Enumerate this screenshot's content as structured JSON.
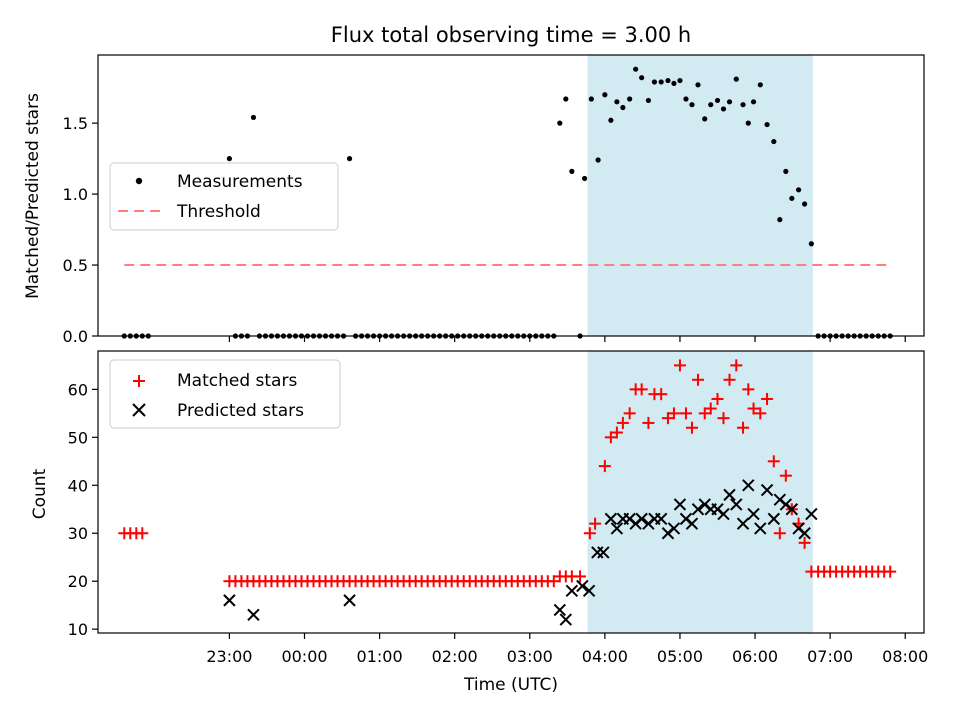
{
  "chart_data": {
    "title": "Flux total observing time = 3.00 h",
    "xlabel": "Time (UTC)",
    "time_unit": "hours relative to 00:00 UTC",
    "xlim": [
      -2.75,
      8.25
    ],
    "x_ticks": [
      {
        "value": -1,
        "label": "23:00"
      },
      {
        "value": 0,
        "label": "00:00"
      },
      {
        "value": 1,
        "label": "01:00"
      },
      {
        "value": 2,
        "label": "02:00"
      },
      {
        "value": 3,
        "label": "03:00"
      },
      {
        "value": 4,
        "label": "04:00"
      },
      {
        "value": 5,
        "label": "05:00"
      },
      {
        "value": 6,
        "label": "06:00"
      },
      {
        "value": 7,
        "label": "07:00"
      },
      {
        "value": 8,
        "label": "08:00"
      }
    ],
    "shaded_region": {
      "start": 3.77,
      "end": 6.77,
      "color": "#add8e6"
    },
    "colors": {
      "measurements": "#000000",
      "threshold": "#ff7f7f",
      "matched": "#ff0000",
      "predicted": "#000000",
      "shade": "#add8e6"
    },
    "top_panel": {
      "type": "scatter",
      "ylabel": "Matched/Predicted stars",
      "ylim": [
        0,
        1.98
      ],
      "y_ticks": [
        {
          "value": 0,
          "label": "0.0"
        },
        {
          "value": 0.5,
          "label": "0.5"
        },
        {
          "value": 1,
          "label": "1.0"
        },
        {
          "value": 1.5,
          "label": "1.5"
        }
      ],
      "threshold": {
        "value": 0.5,
        "x_start": -2.4,
        "x_end": 7.8
      },
      "legend": {
        "placement": "center-left",
        "measurements_label": "Measurements",
        "threshold_label": "Threshold"
      },
      "measurements": [
        [
          -2.4,
          0
        ],
        [
          -2.32,
          0
        ],
        [
          -2.24,
          0
        ],
        [
          -2.16,
          0
        ],
        [
          -2.08,
          0
        ],
        [
          -1.0,
          1.25
        ],
        [
          -0.92,
          0
        ],
        [
          -0.84,
          0
        ],
        [
          -0.76,
          0
        ],
        [
          -0.68,
          1.54
        ],
        [
          -0.6,
          0
        ],
        [
          -0.52,
          0
        ],
        [
          -0.44,
          0
        ],
        [
          -0.36,
          0
        ],
        [
          -0.28,
          0
        ],
        [
          -0.2,
          0
        ],
        [
          -0.12,
          0
        ],
        [
          -0.04,
          0
        ],
        [
          0.04,
          0
        ],
        [
          0.12,
          0
        ],
        [
          0.2,
          0
        ],
        [
          0.28,
          0
        ],
        [
          0.36,
          0
        ],
        [
          0.44,
          0
        ],
        [
          0.52,
          0
        ],
        [
          0.6,
          1.25
        ],
        [
          0.68,
          0
        ],
        [
          0.76,
          0
        ],
        [
          0.84,
          0
        ],
        [
          0.92,
          0
        ],
        [
          1.0,
          0
        ],
        [
          1.08,
          0
        ],
        [
          1.16,
          0
        ],
        [
          1.24,
          0
        ],
        [
          1.32,
          0
        ],
        [
          1.4,
          0
        ],
        [
          1.48,
          0
        ],
        [
          1.56,
          0
        ],
        [
          1.64,
          0
        ],
        [
          1.72,
          0
        ],
        [
          1.8,
          0
        ],
        [
          1.88,
          0
        ],
        [
          1.96,
          0
        ],
        [
          2.04,
          0
        ],
        [
          2.12,
          0
        ],
        [
          2.2,
          0
        ],
        [
          2.28,
          0
        ],
        [
          2.36,
          0
        ],
        [
          2.44,
          0
        ],
        [
          2.52,
          0
        ],
        [
          2.6,
          0
        ],
        [
          2.68,
          0
        ],
        [
          2.76,
          0
        ],
        [
          2.84,
          0
        ],
        [
          2.92,
          0
        ],
        [
          3.0,
          0
        ],
        [
          3.08,
          0
        ],
        [
          3.16,
          0
        ],
        [
          3.24,
          0
        ],
        [
          3.32,
          0
        ],
        [
          3.4,
          1.5
        ],
        [
          3.48,
          1.67
        ],
        [
          3.56,
          1.16
        ],
        [
          3.67,
          0
        ],
        [
          3.73,
          1.11
        ],
        [
          3.82,
          1.67
        ],
        [
          3.91,
          1.24
        ],
        [
          4.0,
          1.7
        ],
        [
          4.08,
          1.52
        ],
        [
          4.16,
          1.65
        ],
        [
          4.24,
          1.61
        ],
        [
          4.33,
          1.67
        ],
        [
          4.41,
          1.88
        ],
        [
          4.49,
          1.82
        ],
        [
          4.58,
          1.66
        ],
        [
          4.66,
          1.79
        ],
        [
          4.75,
          1.79
        ],
        [
          4.84,
          1.8
        ],
        [
          4.92,
          1.78
        ],
        [
          5.0,
          1.8
        ],
        [
          5.08,
          1.67
        ],
        [
          5.16,
          1.63
        ],
        [
          5.24,
          1.77
        ],
        [
          5.33,
          1.53
        ],
        [
          5.41,
          1.63
        ],
        [
          5.5,
          1.66
        ],
        [
          5.58,
          1.6
        ],
        [
          5.66,
          1.65
        ],
        [
          5.75,
          1.81
        ],
        [
          5.84,
          1.63
        ],
        [
          5.91,
          1.5
        ],
        [
          5.98,
          1.65
        ],
        [
          6.07,
          1.77
        ],
        [
          6.16,
          1.49
        ],
        [
          6.25,
          1.37
        ],
        [
          6.33,
          0.82
        ],
        [
          6.41,
          1.16
        ],
        [
          6.49,
          0.97
        ],
        [
          6.58,
          1.03
        ],
        [
          6.66,
          0.93
        ],
        [
          6.75,
          0.65
        ],
        [
          6.84,
          0
        ],
        [
          6.92,
          0
        ],
        [
          7.0,
          0
        ],
        [
          7.08,
          0
        ],
        [
          7.16,
          0
        ],
        [
          7.24,
          0
        ],
        [
          7.32,
          0
        ],
        [
          7.4,
          0
        ],
        [
          7.48,
          0
        ],
        [
          7.56,
          0
        ],
        [
          7.64,
          0
        ],
        [
          7.72,
          0
        ],
        [
          7.8,
          0
        ]
      ]
    },
    "bottom_panel": {
      "type": "scatter",
      "ylabel": "Count",
      "ylim": [
        9.2,
        68
      ],
      "y_ticks": [
        {
          "value": 10,
          "label": "10"
        },
        {
          "value": 20,
          "label": "20"
        },
        {
          "value": 30,
          "label": "30"
        },
        {
          "value": 40,
          "label": "40"
        },
        {
          "value": 50,
          "label": "50"
        },
        {
          "value": 60,
          "label": "60"
        }
      ],
      "legend": {
        "placement": "top-left",
        "matched_label": "Matched stars",
        "predicted_label": "Predicted stars"
      },
      "matched_stars": [
        [
          -2.4,
          30
        ],
        [
          -2.32,
          30
        ],
        [
          -2.24,
          30
        ],
        [
          -2.16,
          30
        ],
        [
          -1.0,
          20
        ],
        [
          -0.92,
          20
        ],
        [
          -0.84,
          20
        ],
        [
          -0.76,
          20
        ],
        [
          -0.68,
          20
        ],
        [
          -0.6,
          20
        ],
        [
          -0.52,
          20
        ],
        [
          -0.44,
          20
        ],
        [
          -0.36,
          20
        ],
        [
          -0.28,
          20
        ],
        [
          -0.2,
          20
        ],
        [
          -0.12,
          20
        ],
        [
          -0.04,
          20
        ],
        [
          0.04,
          20
        ],
        [
          0.12,
          20
        ],
        [
          0.2,
          20
        ],
        [
          0.28,
          20
        ],
        [
          0.36,
          20
        ],
        [
          0.44,
          20
        ],
        [
          0.52,
          20
        ],
        [
          0.6,
          20
        ],
        [
          0.68,
          20
        ],
        [
          0.76,
          20
        ],
        [
          0.84,
          20
        ],
        [
          0.92,
          20
        ],
        [
          1.0,
          20
        ],
        [
          1.08,
          20
        ],
        [
          1.16,
          20
        ],
        [
          1.24,
          20
        ],
        [
          1.32,
          20
        ],
        [
          1.4,
          20
        ],
        [
          1.48,
          20
        ],
        [
          1.56,
          20
        ],
        [
          1.64,
          20
        ],
        [
          1.72,
          20
        ],
        [
          1.8,
          20
        ],
        [
          1.88,
          20
        ],
        [
          1.96,
          20
        ],
        [
          2.04,
          20
        ],
        [
          2.12,
          20
        ],
        [
          2.2,
          20
        ],
        [
          2.28,
          20
        ],
        [
          2.36,
          20
        ],
        [
          2.44,
          20
        ],
        [
          2.52,
          20
        ],
        [
          2.6,
          20
        ],
        [
          2.68,
          20
        ],
        [
          2.76,
          20
        ],
        [
          2.84,
          20
        ],
        [
          2.92,
          20
        ],
        [
          3.0,
          20
        ],
        [
          3.08,
          20
        ],
        [
          3.16,
          20
        ],
        [
          3.24,
          20
        ],
        [
          3.32,
          20
        ],
        [
          3.4,
          21
        ],
        [
          3.48,
          21
        ],
        [
          3.56,
          21
        ],
        [
          3.67,
          21
        ],
        [
          3.8,
          30
        ],
        [
          3.87,
          32
        ],
        [
          4.0,
          44
        ],
        [
          4.08,
          50
        ],
        [
          4.16,
          51
        ],
        [
          4.24,
          53
        ],
        [
          4.33,
          55
        ],
        [
          4.41,
          60
        ],
        [
          4.49,
          60
        ],
        [
          4.58,
          53
        ],
        [
          4.66,
          59
        ],
        [
          4.75,
          59
        ],
        [
          4.84,
          54
        ],
        [
          4.92,
          55
        ],
        [
          5.0,
          65
        ],
        [
          5.08,
          55
        ],
        [
          5.16,
          52
        ],
        [
          5.24,
          62
        ],
        [
          5.33,
          55
        ],
        [
          5.41,
          56
        ],
        [
          5.5,
          58
        ],
        [
          5.58,
          54
        ],
        [
          5.66,
          62
        ],
        [
          5.75,
          65
        ],
        [
          5.84,
          52
        ],
        [
          5.91,
          60
        ],
        [
          5.98,
          56
        ],
        [
          6.07,
          55
        ],
        [
          6.16,
          58
        ],
        [
          6.25,
          45
        ],
        [
          6.33,
          30
        ],
        [
          6.41,
          42
        ],
        [
          6.49,
          35
        ],
        [
          6.58,
          32
        ],
        [
          6.66,
          28
        ],
        [
          6.75,
          22
        ],
        [
          6.84,
          22
        ],
        [
          6.92,
          22
        ],
        [
          7.0,
          22
        ],
        [
          7.08,
          22
        ],
        [
          7.16,
          22
        ],
        [
          7.24,
          22
        ],
        [
          7.32,
          22
        ],
        [
          7.4,
          22
        ],
        [
          7.48,
          22
        ],
        [
          7.56,
          22
        ],
        [
          7.64,
          22
        ],
        [
          7.72,
          22
        ],
        [
          7.8,
          22
        ]
      ],
      "predicted_stars": [
        [
          -1.0,
          16
        ],
        [
          -0.68,
          13
        ],
        [
          0.6,
          16
        ],
        [
          3.4,
          14
        ],
        [
          3.48,
          12
        ],
        [
          3.56,
          18
        ],
        [
          3.7,
          19
        ],
        [
          3.79,
          18
        ],
        [
          3.9,
          26
        ],
        [
          3.98,
          26
        ],
        [
          4.08,
          33
        ],
        [
          4.16,
          31
        ],
        [
          4.24,
          33
        ],
        [
          4.33,
          33
        ],
        [
          4.41,
          32
        ],
        [
          4.49,
          33
        ],
        [
          4.58,
          32
        ],
        [
          4.66,
          33
        ],
        [
          4.75,
          33
        ],
        [
          4.84,
          30
        ],
        [
          4.92,
          31
        ],
        [
          5.0,
          36
        ],
        [
          5.08,
          33
        ],
        [
          5.16,
          32
        ],
        [
          5.24,
          35
        ],
        [
          5.33,
          36
        ],
        [
          5.41,
          35
        ],
        [
          5.5,
          35
        ],
        [
          5.58,
          34
        ],
        [
          5.66,
          38
        ],
        [
          5.75,
          36
        ],
        [
          5.84,
          32
        ],
        [
          5.91,
          40
        ],
        [
          5.98,
          34
        ],
        [
          6.07,
          31
        ],
        [
          6.16,
          39
        ],
        [
          6.25,
          33
        ],
        [
          6.33,
          37
        ],
        [
          6.41,
          36
        ],
        [
          6.49,
          35
        ],
        [
          6.58,
          31
        ],
        [
          6.66,
          30
        ],
        [
          6.75,
          34
        ]
      ]
    }
  }
}
